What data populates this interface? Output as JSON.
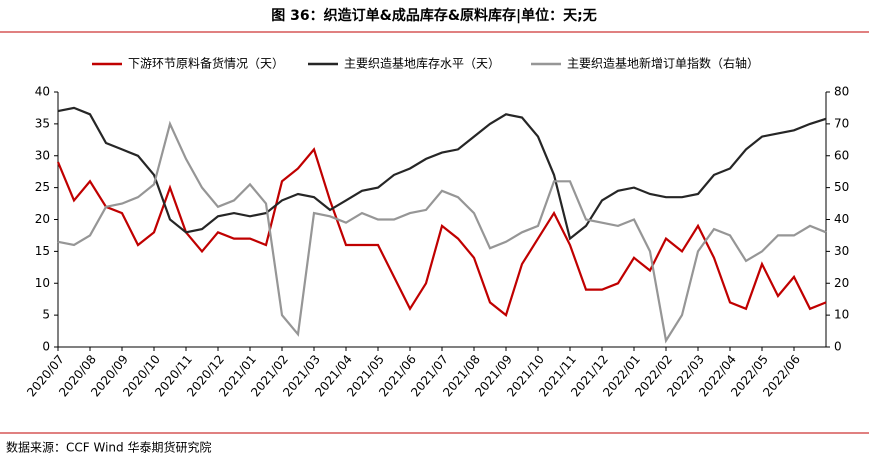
{
  "chart_data": {
    "type": "line",
    "title": "图 36：织造订单&成品库存&原料库存|单位：天;无",
    "source": "数据来源：CCF   Wind  华泰期货研究院",
    "categories": [
      "2020/07",
      null,
      "2020/08",
      null,
      "2020/09",
      null,
      "2020/10",
      null,
      "2020/11",
      null,
      "2020/12",
      null,
      "2021/01",
      null,
      "2021/02",
      null,
      "2021/03",
      null,
      "2021/04",
      null,
      "2021/05",
      null,
      "2021/06",
      null,
      "2021/07",
      null,
      "2021/08",
      null,
      "2021/09",
      null,
      "2021/10",
      null,
      "2021/11",
      null,
      "2021/12",
      null,
      "2022/01",
      null,
      "2022/02",
      null,
      "2022/03",
      null,
      "2022/04",
      null,
      "2022/05",
      null,
      "2022/06",
      null,
      null
    ],
    "series": [
      {
        "name": "下游环节原料备货情况（天）",
        "color": "#c00000",
        "values": [
          29,
          23,
          26,
          22,
          21,
          16,
          18,
          25,
          18,
          15,
          18,
          17,
          17,
          16,
          26,
          28,
          31,
          23,
          16,
          16,
          16,
          11,
          6,
          10,
          19,
          17,
          14,
          7,
          5,
          13,
          17,
          21,
          16,
          9,
          9,
          10,
          14,
          12,
          17,
          15,
          19,
          14,
          7,
          6,
          13,
          8,
          11,
          6,
          7
        ]
      },
      {
        "name": "主要织造基地库存水平（天）",
        "color": "#262626",
        "values": [
          37,
          37.5,
          36.5,
          32,
          31,
          30,
          27,
          20,
          18,
          18.5,
          20.5,
          21,
          20.5,
          21,
          23,
          24,
          23.5,
          21.5,
          23,
          24.5,
          25,
          27,
          28,
          29.5,
          30.5,
          31,
          33,
          35,
          36.5,
          36,
          33,
          27,
          17,
          19,
          23,
          24.5,
          25,
          24,
          23.5,
          23.5,
          24,
          27,
          28,
          31,
          33,
          33.5,
          34,
          35,
          35.8
        ]
      },
      {
        "name": "主要织造基地新增订单指数（右轴）",
        "color": "#969696",
        "axis": "y2",
        "values": [
          33,
          32,
          35,
          44,
          45,
          47,
          51,
          70,
          59,
          50,
          44,
          46,
          51,
          45,
          10,
          4,
          42,
          41,
          39,
          42,
          40,
          40,
          42,
          43,
          49,
          47,
          42,
          31,
          33,
          36,
          38,
          52,
          52,
          40,
          39,
          38,
          40,
          30,
          2,
          10,
          30,
          37,
          35,
          27,
          30,
          35,
          35,
          38,
          36
        ]
      }
    ],
    "ylim": [
      0,
      40
    ],
    "yticks": [
      0,
      5,
      10,
      15,
      20,
      25,
      30,
      35,
      40
    ],
    "y2lim": [
      0,
      80
    ],
    "y2ticks": [
      0,
      10,
      20,
      30,
      40,
      50,
      60,
      70,
      80
    ],
    "legend": "top"
  }
}
